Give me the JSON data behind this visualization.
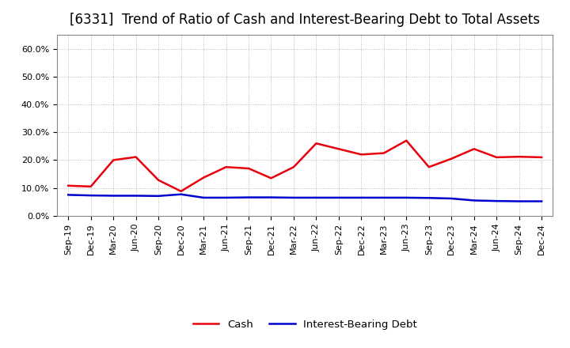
{
  "title": "[6331]  Trend of Ratio of Cash and Interest-Bearing Debt to Total Assets",
  "x_labels": [
    "Sep-19",
    "Dec-19",
    "Mar-20",
    "Jun-20",
    "Sep-20",
    "Dec-20",
    "Mar-21",
    "Jun-21",
    "Sep-21",
    "Dec-21",
    "Mar-22",
    "Jun-22",
    "Sep-22",
    "Dec-22",
    "Mar-23",
    "Jun-23",
    "Sep-23",
    "Dec-23",
    "Mar-24",
    "Jun-24",
    "Sep-24",
    "Dec-24"
  ],
  "cash": [
    0.108,
    0.105,
    0.2,
    0.211,
    0.128,
    0.088,
    0.137,
    0.175,
    0.17,
    0.135,
    0.175,
    0.26,
    0.24,
    0.22,
    0.225,
    0.27,
    0.175,
    0.205,
    0.24,
    0.21,
    0.212,
    0.21
  ],
  "ibd": [
    0.075,
    0.073,
    0.072,
    0.072,
    0.071,
    0.077,
    0.065,
    0.065,
    0.066,
    0.066,
    0.065,
    0.065,
    0.065,
    0.065,
    0.065,
    0.065,
    0.064,
    0.062,
    0.055,
    0.053,
    0.052,
    0.052
  ],
  "cash_color": "#e8000d",
  "ibd_color": "#0000cc",
  "ylim": [
    0.0,
    0.65
  ],
  "yticks": [
    0.0,
    0.1,
    0.2,
    0.3,
    0.4,
    0.5,
    0.6
  ],
  "ytick_labels": [
    "0.0%",
    "10.0%",
    "20.0%",
    "30.0%",
    "40.0%",
    "50.0%",
    "60.0%"
  ],
  "bg_color": "#ffffff",
  "plot_bg_color": "#ffffff",
  "grid_color": "#aaaaaa",
  "title_fontsize": 12,
  "tick_fontsize": 8,
  "legend_fontsize": 9.5,
  "line_width": 1.8
}
